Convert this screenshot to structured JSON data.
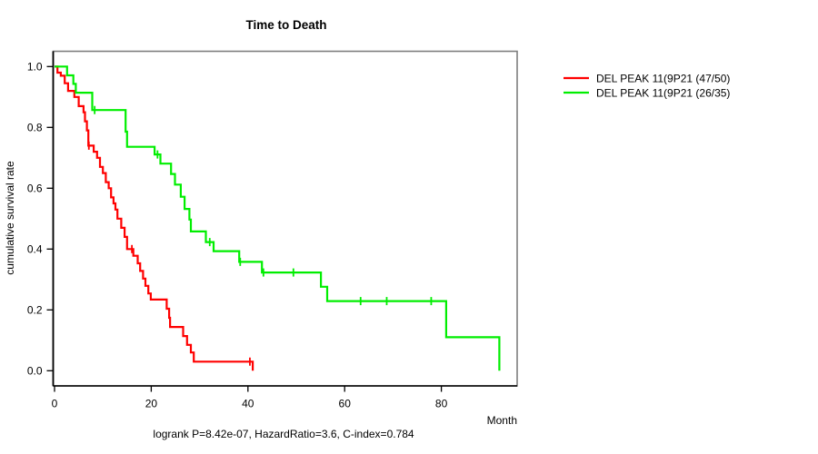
{
  "chart_data": {
    "type": "line",
    "subtype": "kaplan-meier-step",
    "title": "Time to Death",
    "xlabel": "Month",
    "ylabel": "cumulative survival rate",
    "annotation": "logrank P=8.42e-07, HazardRatio=3.6, C-index=0.784",
    "x_ticks": [
      0,
      20,
      40,
      60,
      80
    ],
    "y_ticks": [
      0.0,
      0.2,
      0.4,
      0.6,
      0.8,
      1.0
    ],
    "xlim": [
      0,
      96
    ],
    "ylim": [
      0.0,
      1.0
    ],
    "grid": false,
    "legend_position": "right-outside",
    "series": [
      {
        "name": "DEL PEAK 11(9P21 (47/50)",
        "color": "#ff0000",
        "steps": [
          [
            0,
            1.0
          ],
          [
            0.6,
            0.98
          ],
          [
            1.3,
            0.97
          ],
          [
            2.1,
            0.945
          ],
          [
            2.8,
            0.92
          ],
          [
            4.1,
            0.9
          ],
          [
            5.0,
            0.87
          ],
          [
            6.0,
            0.85
          ],
          [
            6.3,
            0.82
          ],
          [
            6.7,
            0.79
          ],
          [
            7.0,
            0.74
          ],
          [
            8.1,
            0.72
          ],
          [
            8.8,
            0.7
          ],
          [
            9.4,
            0.67
          ],
          [
            10.0,
            0.65
          ],
          [
            10.6,
            0.62
          ],
          [
            11.2,
            0.6
          ],
          [
            11.7,
            0.57
          ],
          [
            12.2,
            0.55
          ],
          [
            12.6,
            0.53
          ],
          [
            13.0,
            0.5
          ],
          [
            13.8,
            0.47
          ],
          [
            14.5,
            0.44
          ],
          [
            15.0,
            0.4
          ],
          [
            16.3,
            0.378
          ],
          [
            17.2,
            0.353
          ],
          [
            17.7,
            0.328
          ],
          [
            18.3,
            0.303
          ],
          [
            18.8,
            0.279
          ],
          [
            19.4,
            0.254
          ],
          [
            19.9,
            0.234
          ],
          [
            23.2,
            0.204
          ],
          [
            23.7,
            0.174
          ],
          [
            23.9,
            0.144
          ],
          [
            26.6,
            0.114
          ],
          [
            27.4,
            0.085
          ],
          [
            28.2,
            0.06
          ],
          [
            28.8,
            0.03
          ],
          [
            41.0,
            0.0
          ]
        ],
        "censors": [
          [
            7.1,
            0.74
          ],
          [
            16.0,
            0.4
          ],
          [
            40.4,
            0.03
          ]
        ]
      },
      {
        "name": "DEL PEAK 11(9P21 (26/35)",
        "color": "#00ee00",
        "steps": [
          [
            0,
            1.0
          ],
          [
            2.6,
            0.971
          ],
          [
            3.9,
            0.943
          ],
          [
            4.4,
            0.914
          ],
          [
            7.8,
            0.857
          ],
          [
            14.7,
            0.786
          ],
          [
            15.0,
            0.736
          ],
          [
            20.7,
            0.711
          ],
          [
            21.9,
            0.681
          ],
          [
            24.1,
            0.647
          ],
          [
            24.9,
            0.612
          ],
          [
            26.1,
            0.572
          ],
          [
            26.9,
            0.532
          ],
          [
            27.9,
            0.497
          ],
          [
            28.2,
            0.458
          ],
          [
            31.3,
            0.423
          ],
          [
            32.9,
            0.393
          ],
          [
            38.2,
            0.358
          ],
          [
            42.9,
            0.323
          ],
          [
            55.1,
            0.276
          ],
          [
            56.4,
            0.229
          ],
          [
            81.0,
            0.11
          ],
          [
            92.0,
            0.0
          ]
        ],
        "censors": [
          [
            8.3,
            0.857
          ],
          [
            21.3,
            0.711
          ],
          [
            32.1,
            0.423
          ],
          [
            38.4,
            0.358
          ],
          [
            43.2,
            0.323
          ],
          [
            49.4,
            0.323
          ],
          [
            63.3,
            0.229
          ],
          [
            68.7,
            0.229
          ],
          [
            77.9,
            0.229
          ]
        ]
      }
    ]
  }
}
